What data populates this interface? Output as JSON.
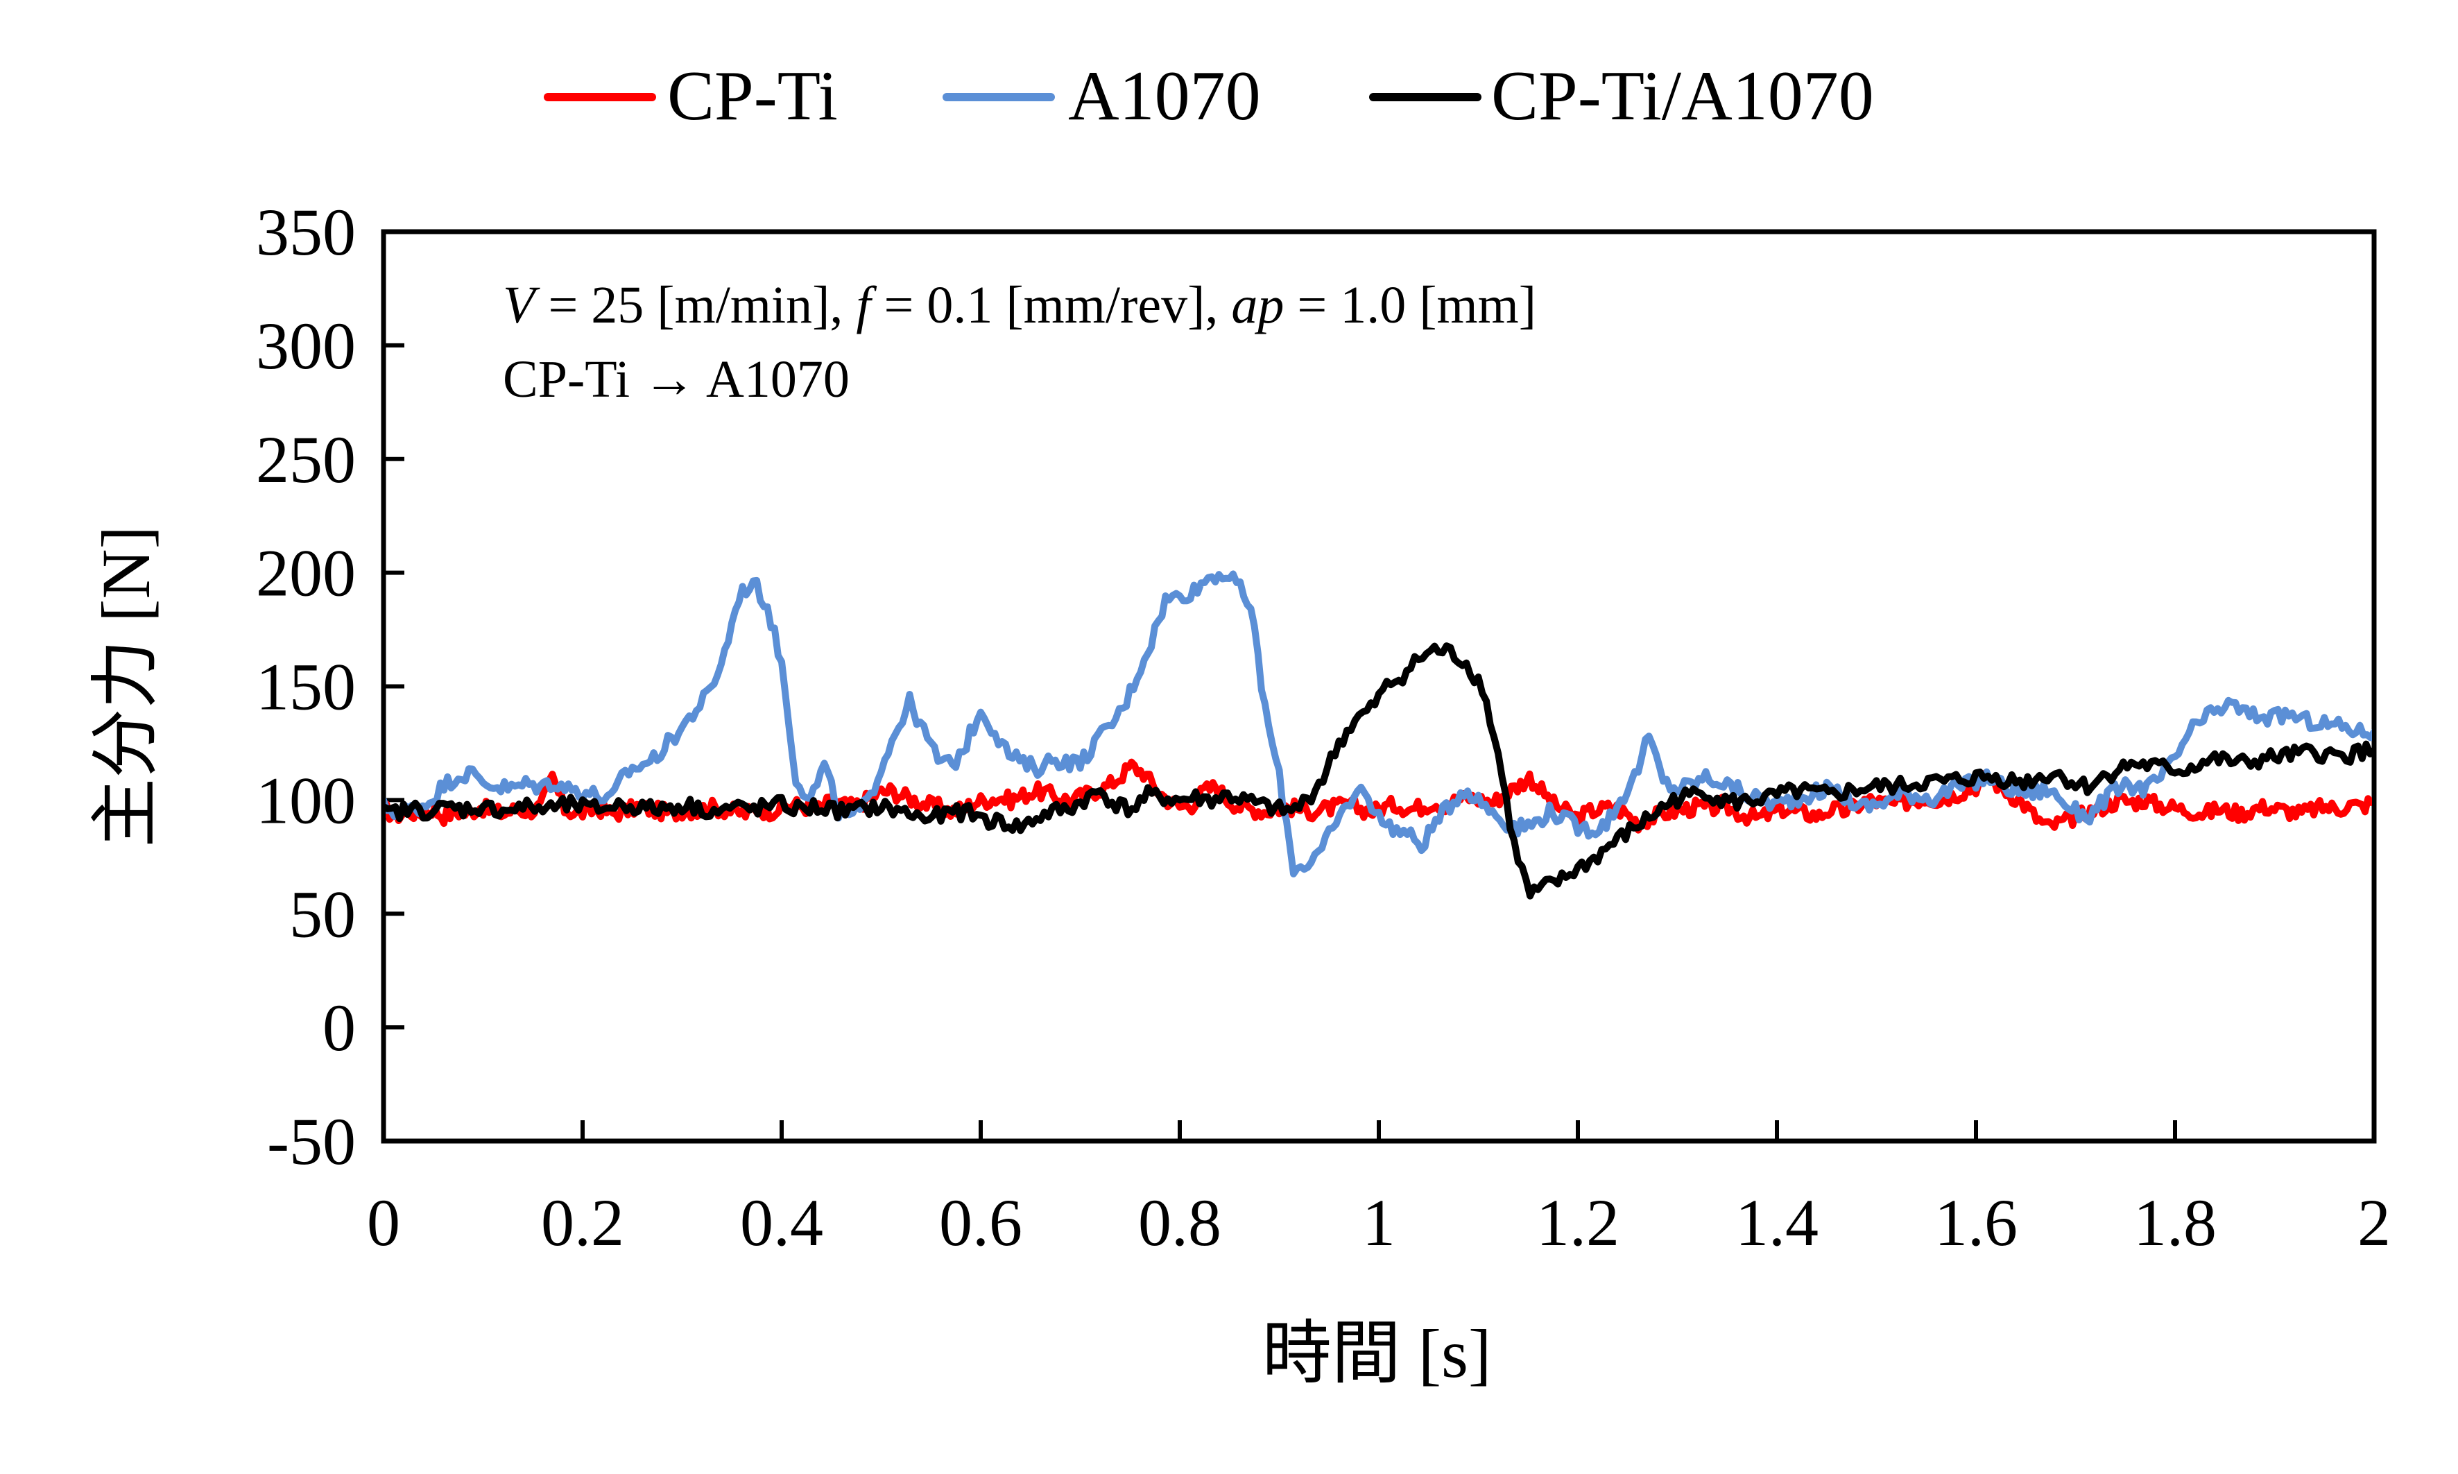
{
  "chart_data": {
    "type": "line",
    "title": "",
    "xlabel": "時間 [s]",
    "ylabel": "主分力 [N]",
    "xlim": [
      0,
      2
    ],
    "ylim": [
      -50,
      350
    ],
    "xticks": [
      0,
      0.2,
      0.4,
      0.6,
      0.8,
      1,
      1.2,
      1.4,
      1.6,
      1.8,
      2
    ],
    "xtick_labels": [
      "0",
      "0.2",
      "0.4",
      "0.6",
      "0.8",
      "1",
      "1.2",
      "1.4",
      "1.6",
      "1.8",
      "2"
    ],
    "yticks": [
      -50,
      0,
      50,
      100,
      150,
      200,
      250,
      300,
      350
    ],
    "ytick_labels": [
      "-50",
      "0",
      "50",
      "100",
      "150",
      "200",
      "250",
      "300",
      "350"
    ],
    "grid": false,
    "legend_position": "top-center",
    "annotations": {
      "line1": {
        "V_sym": "V",
        "V_val": " = 25 [m/min], ",
        "f_sym": "f",
        "f_val": " = 0.1 [mm/rev], ",
        "ap_sym": "ap",
        "ap_val": " = 1.0 [mm]"
      },
      "line2": "CP-Ti → A1070"
    },
    "x_step": 0.02,
    "series": [
      {
        "name": "CP-Ti",
        "color": "#ff0000",
        "values": [
          96,
          93,
          95,
          94,
          96,
          93,
          95,
          94,
          97,
          95,
          94,
          96,
          95,
          97,
          110,
          96,
          94,
          95,
          96,
          94,
          95,
          97,
          96,
          95,
          94,
          96,
          95,
          97,
          96,
          95,
          94,
          96,
          95,
          97,
          98,
          97,
          96,
          99,
          98,
          97,
          100,
          103,
          104,
          102,
          100,
          98,
          97,
          95,
          96,
          99,
          100,
          101,
          100,
          102,
          104,
          103,
          101,
          100,
          102,
          104,
          106,
          110,
          115,
          112,
          105,
          100,
          97,
          98,
          104,
          106,
          100,
          97,
          96,
          95,
          96,
          97,
          96,
          95,
          96,
          97,
          98,
          96,
          95,
          97,
          98,
          96,
          97,
          99,
          98,
          100,
          101,
          100,
          99,
          103,
          106,
          110,
          104,
          98,
          95,
          92,
          95,
          96,
          97,
          94,
          90,
          92,
          94,
          95,
          96,
          97,
          96,
          98,
          95,
          93,
          92,
          94,
          96,
          95,
          94,
          93,
          96,
          95,
          97,
          100,
          99,
          98,
          99,
          100,
          101,
          100,
          102,
          104,
          106,
          110,
          106,
          102,
          98,
          92,
          88,
          90,
          92,
          94,
          96,
          98,
          100,
          99,
          100,
          98,
          97,
          96,
          95,
          94,
          96,
          95,
          94,
          96,
          97,
          96,
          95,
          94,
          96,
          97,
          96,
          98,
          97,
          100
        ]
      },
      {
        "name": "A1070",
        "color": "#5b8fd6",
        "values": [
          97,
          95,
          96,
          98,
          105,
          110,
          112,
          108,
          106,
          105,
          107,
          106,
          108,
          105,
          104,
          102,
          100,
          112,
          115,
          118,
          125,
          132,
          140,
          148,
          165,
          190,
          196,
          185,
          160,
          110,
          100,
          115,
          95,
          93,
          98,
          115,
          130,
          143,
          130,
          118,
          115,
          125,
          140,
          130,
          120,
          116,
          114,
          118,
          117,
          116,
          125,
          132,
          140,
          155,
          170,
          188,
          190,
          192,
          198,
          200,
          195,
          185,
          140,
          110,
          70,
          72,
          78,
          90,
          100,
          105,
          92,
          88,
          85,
          80,
          90,
          98,
          105,
          100,
          95,
          90,
          88,
          90,
          95,
          92,
          88,
          87,
          90,
          100,
          110,
          128,
          108,
          105,
          107,
          110,
          108,
          105,
          102,
          100,
          98,
          100,
          102,
          104,
          105,
          100,
          97,
          98,
          101,
          103,
          102,
          101,
          104,
          106,
          108,
          110,
          106,
          104,
          103,
          105,
          100,
          95,
          93,
          100,
          105,
          106,
          105,
          110,
          118,
          130,
          135,
          140,
          142,
          138,
          137,
          136,
          138,
          135,
          134,
          133,
          132,
          130,
          130
        ]
      },
      {
        "name": "CP-Ti/A1070",
        "color": "#000000",
        "values": [
          94,
          95,
          96,
          95,
          97,
          96,
          97,
          96,
          96,
          97,
          96,
          97,
          98,
          96,
          97,
          98,
          97,
          96,
          97,
          98,
          96,
          95,
          97,
          96,
          97,
          98,
          96,
          97,
          96,
          95,
          96,
          97,
          96,
          94,
          92,
          93,
          95,
          94,
          91,
          90,
          88,
          92,
          95,
          96,
          100,
          104,
          98,
          96,
          102,
          101,
          100,
          101,
          100,
          102,
          100,
          98,
          96,
          95,
          100,
          110,
          125,
          135,
          140,
          150,
          155,
          162,
          166,
          165,
          160,
          150,
          120,
          80,
          58,
          62,
          65,
          70,
          74,
          80,
          85,
          90,
          95,
          100,
          102,
          104,
          100,
          99,
          100,
          101,
          103,
          104,
          103,
          102,
          104,
          105,
          106,
          106,
          107,
          108,
          108,
          109,
          110,
          110,
          109,
          108,
          110,
          112,
          108,
          106,
          110,
          114,
          116,
          115,
          114,
          113,
          116,
          118,
          117,
          116,
          118,
          119,
          120,
          121,
          120,
          119,
          121,
          122
        ]
      }
    ]
  },
  "legend": {
    "items": [
      {
        "label": "CP-Ti",
        "color": "#ff0000"
      },
      {
        "label": "A1070",
        "color": "#5b8fd6"
      },
      {
        "label": "CP-Ti/A1070",
        "color": "#000000"
      }
    ]
  }
}
